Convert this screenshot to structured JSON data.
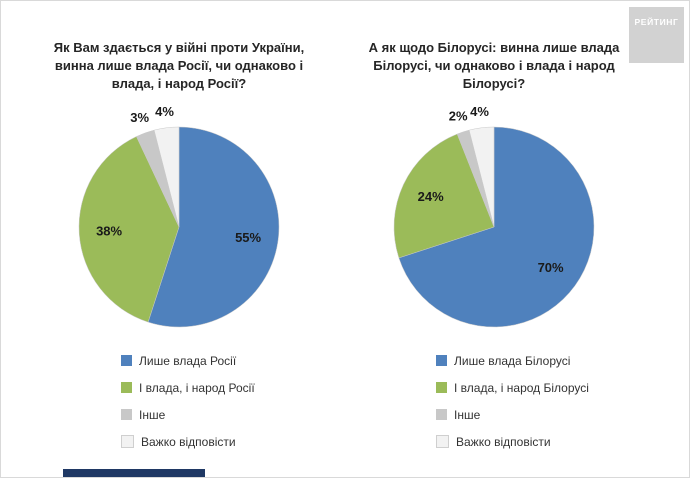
{
  "logo": {
    "text": "РЕЙТИНГ"
  },
  "chart_data": [
    {
      "type": "pie",
      "title": "Як Вам здається у війні проти України, винна лише влада Росії, чи однаково і влада, і народ Росії?",
      "labels": [
        "Лише влада Росії",
        "І влада, і народ Росії",
        "Інше",
        "Важко відповісти"
      ],
      "values": [
        55,
        38,
        3,
        4
      ],
      "value_labels": [
        "55%",
        "38%",
        "3%",
        "4%"
      ],
      "colors": [
        "#4f81bd",
        "#9bbb59",
        "#c8c8c8",
        "#f2f2f2"
      ],
      "start_angle_deg": 0,
      "direction": "clockwise",
      "legend_position": "bottom-left"
    },
    {
      "type": "pie",
      "title": "А як щодо Білорусі: винна лише влада Білорусі, чи однаково і влада і народ Білорусі?",
      "labels": [
        "Лише влада Білорусі",
        "І влада, і народ Білорусі",
        "Інше",
        "Важко відповісти"
      ],
      "values": [
        70,
        24,
        2,
        4
      ],
      "value_labels": [
        "70%",
        "24%",
        "2%",
        "4%"
      ],
      "colors": [
        "#4f81bd",
        "#9bbb59",
        "#c8c8c8",
        "#f2f2f2"
      ],
      "start_angle_deg": 0,
      "direction": "clockwise",
      "legend_position": "bottom-left"
    }
  ]
}
